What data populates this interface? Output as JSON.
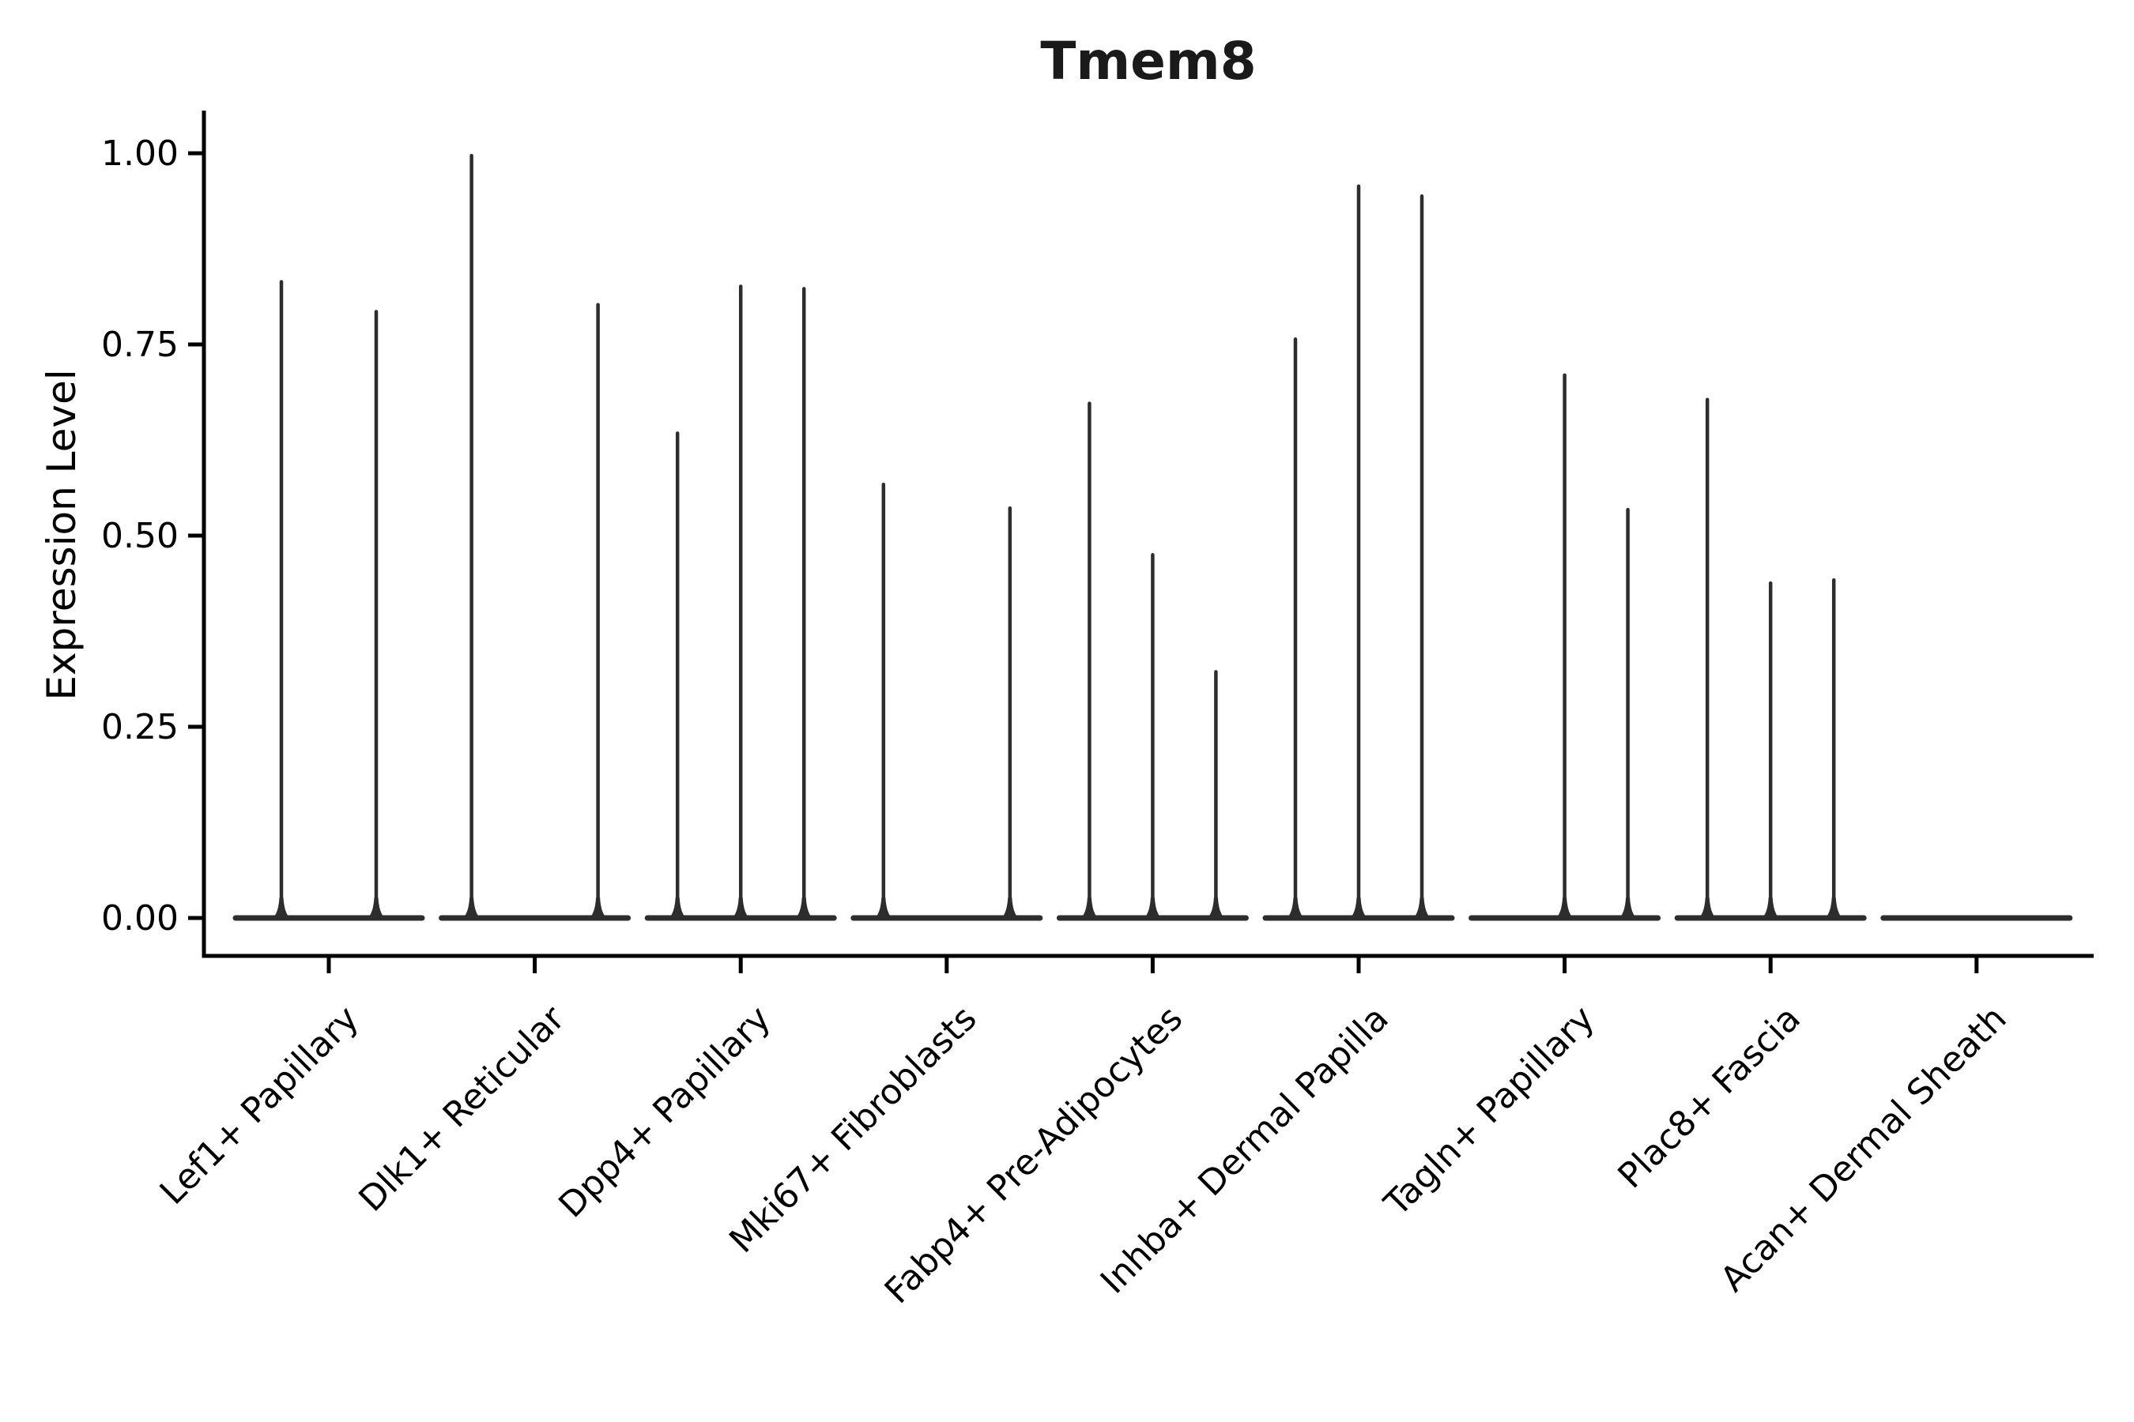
{
  "chart_data": {
    "type": "violin",
    "title": "Tmem8",
    "ylabel": "Expression Level",
    "xlabel": "",
    "ylim": [
      -0.05,
      1.06
    ],
    "grid": false,
    "legend_position": "none",
    "ink_color": "#2d2d2d",
    "axis_color": "#000000",
    "background_color": "#ffffff",
    "yticks": [
      {
        "label": "0.00",
        "value": 0.0
      },
      {
        "label": "0.25",
        "value": 0.25
      },
      {
        "label": "0.50",
        "value": 0.5
      },
      {
        "label": "0.75",
        "value": 0.75
      },
      {
        "label": "1.00",
        "value": 1.0
      }
    ],
    "value_note": "each violin is sparse: flat base at 0 with one thin density spike; value = spike top (max Expression Level)",
    "categories": [
      {
        "label": "Lef1+ Papillary",
        "violins": [
          0.835,
          0.796
        ]
      },
      {
        "label": "Dlk1+ Reticular",
        "violins": [
          1.0,
          0,
          0.805
        ]
      },
      {
        "label": "Dpp4+ Papillary",
        "violins": [
          0.637,
          0.829,
          0.826
        ]
      },
      {
        "label": "Mki67+ Fibroblasts",
        "violins": [
          0.57,
          0,
          0.539
        ]
      },
      {
        "label": "Fabp4+ Pre-Adipocytes",
        "violins": [
          0.676,
          0.478,
          0.325
        ]
      },
      {
        "label": "Inhba+ Dermal Papilla",
        "violins": [
          0.76,
          0.96,
          0.947
        ]
      },
      {
        "label": "Tagln+ Papillary",
        "violins": [
          0,
          0.713,
          0.537
        ]
      },
      {
        "label": "Plac8+ Fascia",
        "violins": [
          0.681,
          0.441,
          0.445
        ]
      },
      {
        "label": "Acan+ Dermal Sheath",
        "violins": [
          0,
          0,
          0
        ]
      }
    ]
  }
}
